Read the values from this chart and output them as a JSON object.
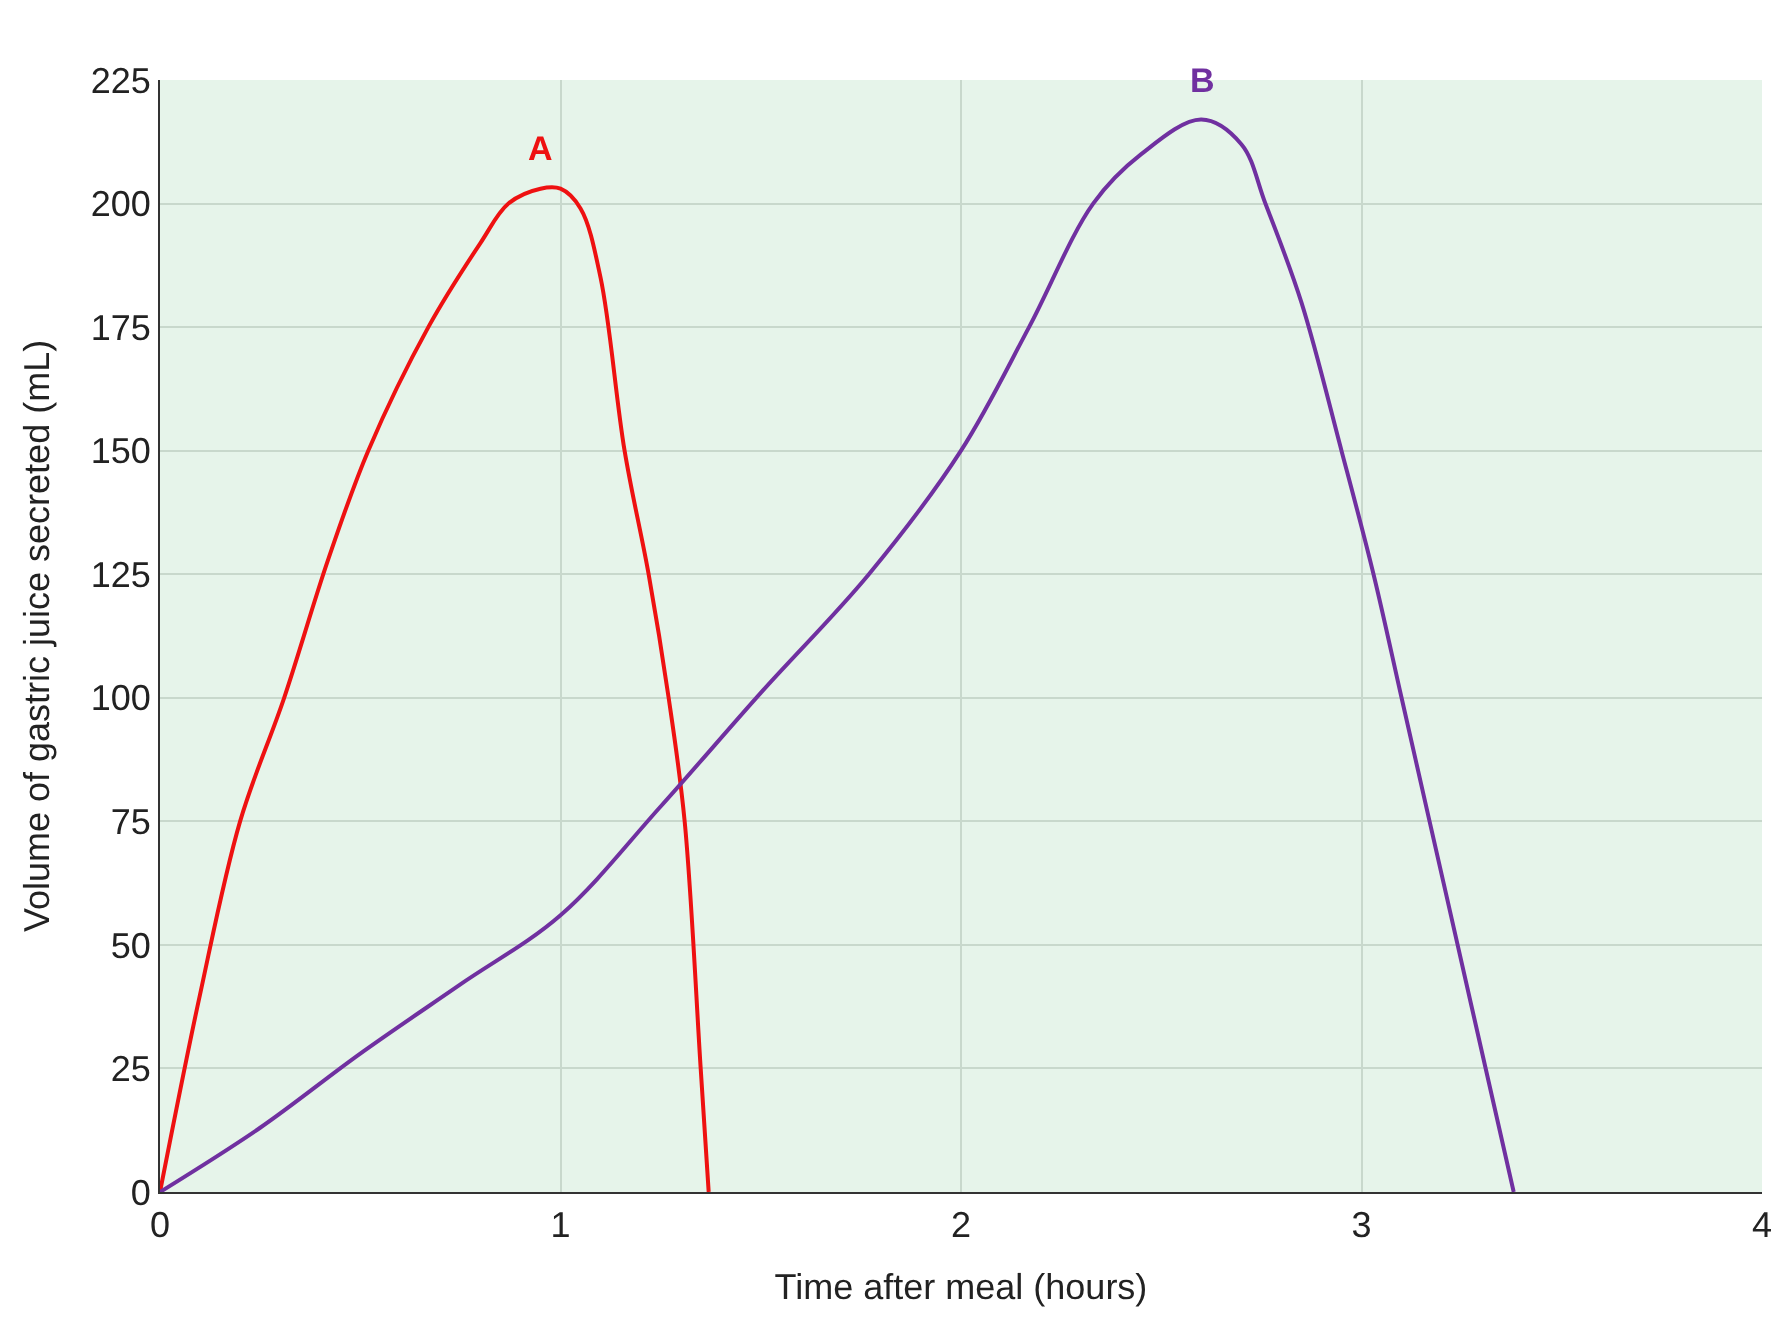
{
  "chart_data": {
    "type": "line",
    "xlabel": "Time after meal (hours)",
    "ylabel": "Volume of gastric juice secreted (mL)",
    "xlim": [
      0,
      4
    ],
    "xticks": [
      0,
      1,
      2,
      3,
      4
    ],
    "ylim": [
      0,
      225
    ],
    "yticks": [
      0,
      25,
      50,
      75,
      100,
      125,
      150,
      175,
      200,
      225
    ],
    "grid": true,
    "marker": "none",
    "line_style": "solid",
    "series": [
      {
        "name": "A",
        "color": "#ee1111",
        "x": [
          0,
          0.1,
          0.2,
          0.31,
          0.42,
          0.52,
          0.67,
          0.8,
          0.87,
          0.95,
          1.0,
          1.05,
          1.1,
          1.16,
          1.22,
          1.27,
          1.31,
          1.35,
          1.37
        ],
        "values": [
          0,
          40,
          75,
          100,
          128,
          150,
          175,
          192,
          200,
          203,
          203,
          199,
          185,
          150,
          125,
          100,
          75,
          25,
          0
        ]
      },
      {
        "name": "B",
        "color": "#7030a0",
        "x": [
          0,
          0.25,
          0.5,
          0.75,
          1.0,
          1.25,
          1.5,
          1.77,
          2.0,
          2.17,
          2.33,
          2.45,
          2.6,
          2.7,
          2.76,
          2.85,
          2.95,
          3.03,
          3.1,
          3.17,
          3.24,
          3.31,
          3.38
        ],
        "values": [
          0,
          13,
          28,
          42,
          56,
          78,
          101,
          125,
          150,
          175,
          200,
          210,
          217,
          212,
          200,
          180,
          150,
          125,
          100,
          75,
          50,
          25,
          0
        ]
      }
    ]
  }
}
